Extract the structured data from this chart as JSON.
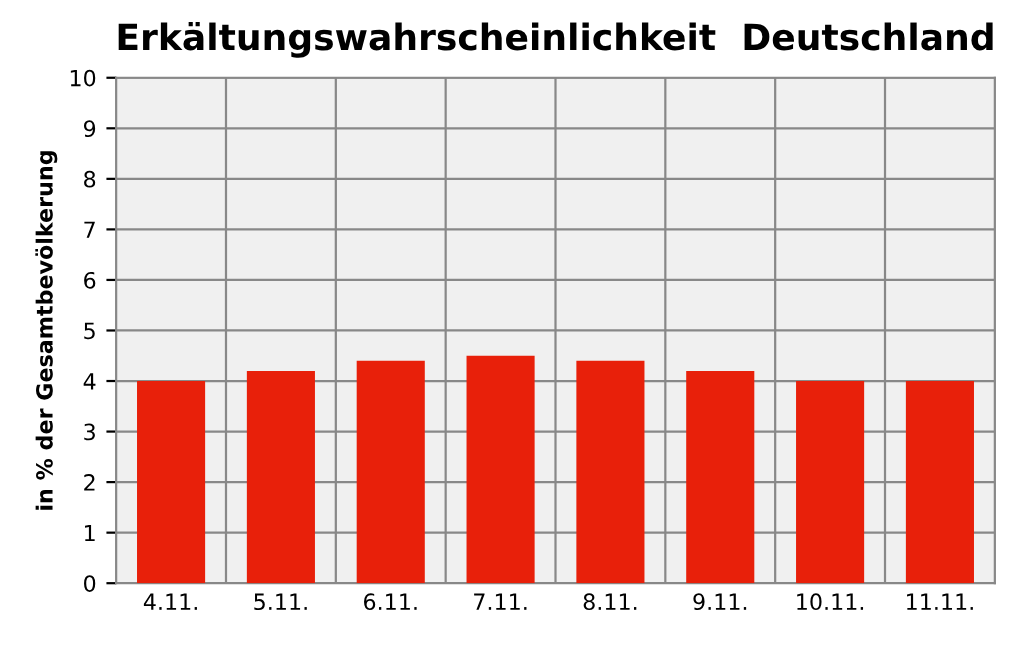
{
  "chart_data": {
    "type": "bar",
    "title": "Erkältungswahrscheinlichkeit  Deutschland",
    "ylabel": "in % der Gesamtbevölkerung",
    "categories": [
      "4.11.",
      "5.11.",
      "6.11.",
      "7.11.",
      "8.11.",
      "9.11.",
      "10.11.",
      "11.11."
    ],
    "values": [
      4.0,
      4.2,
      4.4,
      4.5,
      4.4,
      4.2,
      4.0,
      4.0
    ],
    "color": "#e8200a",
    "ylim": [
      0,
      10
    ],
    "yticks": [
      0,
      1,
      2,
      3,
      4,
      5,
      6,
      7,
      8,
      9,
      10
    ],
    "grid": true
  }
}
